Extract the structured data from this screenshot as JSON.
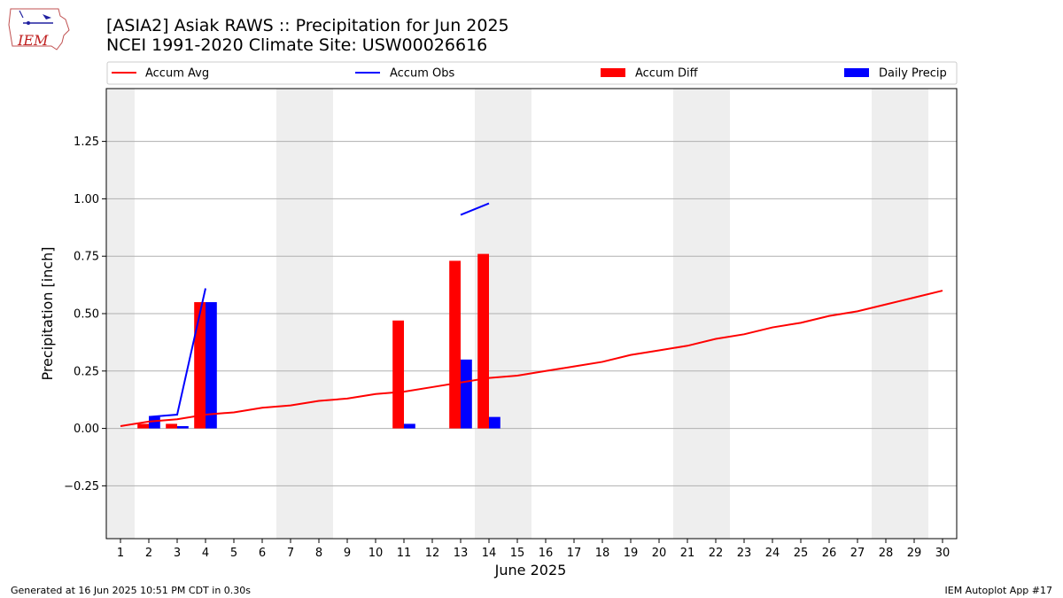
{
  "header": {
    "title_line1": "[ASIA2] Asiak RAWS :: Precipitation for Jun 2025",
    "title_line2": "NCEI 1991-2020 Climate Site: USW00026616",
    "logo_text": "IEM"
  },
  "footer": {
    "generated": "Generated at 16 Jun 2025 10:51 PM CDT in 0.30s",
    "app": "IEM Autoplot App #17"
  },
  "colors": {
    "avg": "#ff0000",
    "obs": "#0000ff",
    "diff": "#ff0000",
    "daily": "#0000ff",
    "weekend_band": "#eeeeee",
    "grid": "#b0b0b0"
  },
  "chart_data": {
    "type": "bar",
    "xlabel": "June 2025",
    "ylabel": "Precipitation [inch]",
    "xlim": [
      0.5,
      30.5
    ],
    "ylim": [
      -0.48,
      1.48
    ],
    "yticks": [
      -0.25,
      0.0,
      0.25,
      0.5,
      0.75,
      1.0,
      1.25
    ],
    "ytick_labels": [
      "−0.25",
      "0.00",
      "0.25",
      "0.50",
      "0.75",
      "1.00",
      "1.25"
    ],
    "xticks": [
      1,
      2,
      3,
      4,
      5,
      6,
      7,
      8,
      9,
      10,
      11,
      12,
      13,
      14,
      15,
      16,
      17,
      18,
      19,
      20,
      21,
      22,
      23,
      24,
      25,
      26,
      27,
      28,
      29,
      30
    ],
    "grid": "horizontal",
    "shaded_days": [
      [
        0.5,
        1.5
      ],
      [
        6.5,
        8.5
      ],
      [
        13.5,
        15.5
      ],
      [
        20.5,
        22.5
      ],
      [
        27.5,
        29.5
      ]
    ],
    "legend": {
      "placement": "top",
      "entries": [
        {
          "label": "Accum Avg",
          "kind": "line",
          "color_key": "avg"
        },
        {
          "label": "Accum Obs",
          "kind": "line",
          "color_key": "obs"
        },
        {
          "label": "Accum Diff",
          "kind": "bar",
          "color_key": "diff"
        },
        {
          "label": "Daily Precip",
          "kind": "bar",
          "color_key": "daily"
        }
      ]
    },
    "series": [
      {
        "name": "Accum Avg",
        "kind": "line",
        "x": [
          1,
          2,
          3,
          4,
          5,
          6,
          7,
          8,
          9,
          10,
          11,
          12,
          13,
          14,
          15,
          16,
          17,
          18,
          19,
          20,
          21,
          22,
          23,
          24,
          25,
          26,
          27,
          28,
          29,
          30
        ],
        "values": [
          0.01,
          0.03,
          0.04,
          0.06,
          0.07,
          0.09,
          0.1,
          0.12,
          0.13,
          0.15,
          0.16,
          0.18,
          0.2,
          0.22,
          0.23,
          0.25,
          0.27,
          0.29,
          0.32,
          0.34,
          0.36,
          0.39,
          0.41,
          0.44,
          0.46,
          0.49,
          0.51,
          0.54,
          0.57,
          0.6
        ]
      },
      {
        "name": "Accum Obs",
        "kind": "line",
        "segments": [
          {
            "x": [
              2,
              3,
              4
            ],
            "values": [
              0.05,
              0.06,
              0.61
            ]
          },
          {
            "x": [
              13,
              14
            ],
            "values": [
              0.93,
              0.98
            ]
          }
        ]
      },
      {
        "name": "Accum Diff",
        "kind": "bar",
        "x": [
          2,
          3,
          4,
          11,
          13,
          14
        ],
        "values": [
          0.02,
          0.02,
          0.55,
          0.47,
          0.73,
          0.76
        ]
      },
      {
        "name": "Daily Precip",
        "kind": "bar",
        "x": [
          2,
          3,
          4,
          11,
          13,
          14
        ],
        "values": [
          0.05,
          0.01,
          0.55,
          0.02,
          0.3,
          0.05
        ]
      }
    ]
  }
}
